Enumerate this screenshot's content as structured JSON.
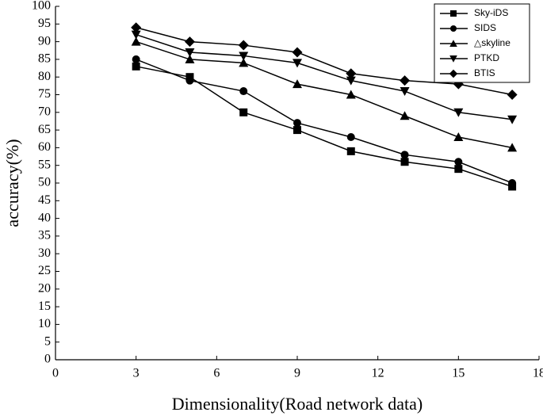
{
  "chart_data": {
    "type": "line",
    "xlabel": "Dimensionality(Road network data)",
    "ylabel": "accuracy(%)",
    "x": [
      3,
      5,
      7,
      9,
      11,
      13,
      15,
      17
    ],
    "series": [
      {
        "name": "Sky-iDS",
        "color": "#000000",
        "marker": "square",
        "values": [
          83,
          80,
          70,
          65,
          59,
          56,
          54,
          49
        ]
      },
      {
        "name": "SIDS",
        "color": "#000000",
        "marker": "circle",
        "values": [
          85,
          79,
          76,
          67,
          63,
          58,
          56,
          50
        ]
      },
      {
        "name": "△skyline",
        "color": "#000000",
        "marker": "triangle-up",
        "values": [
          90,
          85,
          84,
          78,
          75,
          69,
          63,
          60
        ]
      },
      {
        "name": "PTKD",
        "color": "#000000",
        "marker": "triangle-down",
        "values": [
          92,
          87,
          86,
          84,
          79,
          76,
          70,
          68
        ]
      },
      {
        "name": "BTIS",
        "color": "#000000",
        "marker": "diamond",
        "values": [
          94,
          90,
          89,
          87,
          81,
          79,
          78,
          75
        ]
      }
    ],
    "xlim": [
      0,
      18
    ],
    "xticks": [
      0,
      3,
      6,
      9,
      12,
      15,
      18
    ],
    "ylim": [
      0,
      100
    ],
    "yticks": [
      0,
      5,
      10,
      15,
      20,
      25,
      30,
      35,
      40,
      45,
      50,
      55,
      60,
      65,
      70,
      75,
      80,
      85,
      90,
      95,
      100
    ],
    "legend": "upper right",
    "grid": false
  }
}
